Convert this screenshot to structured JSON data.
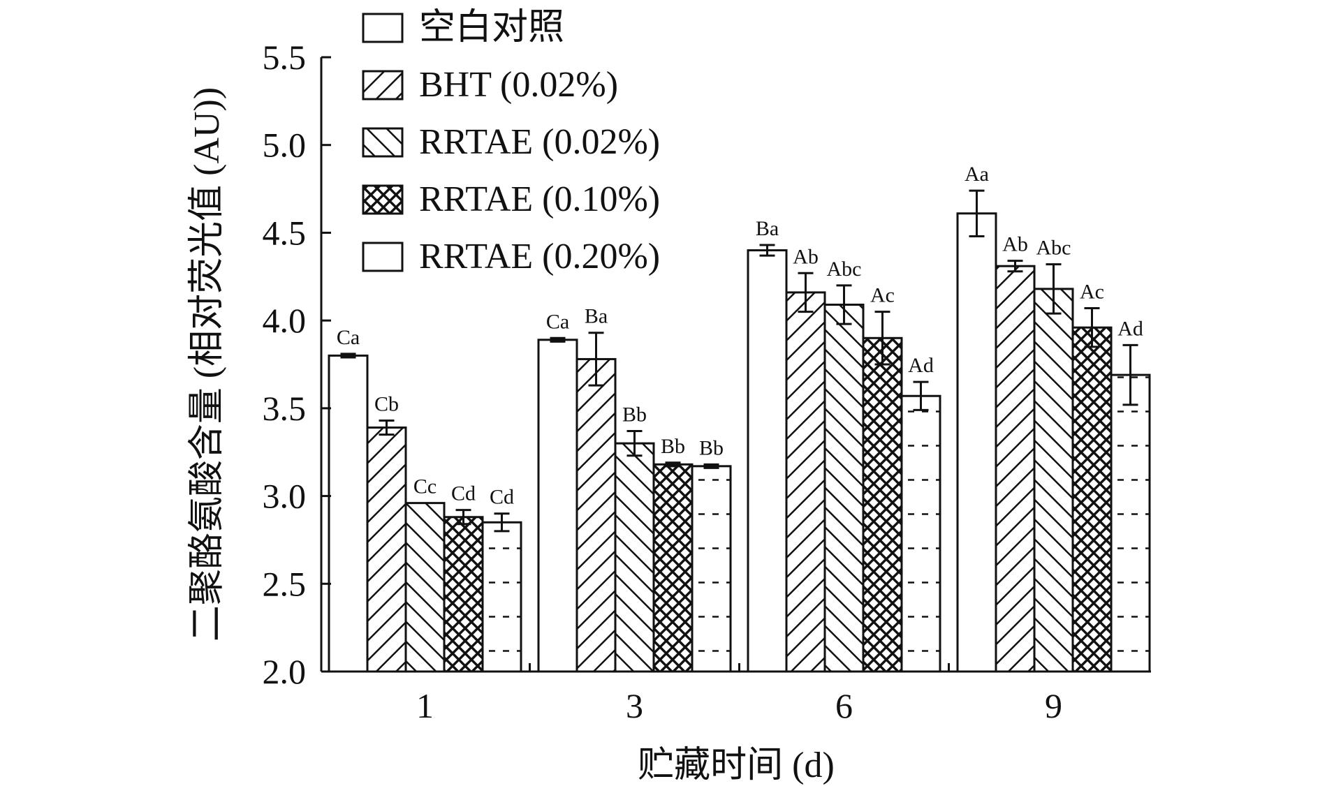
{
  "chart_data": {
    "type": "bar",
    "xlabel": "贮藏时间 (d)",
    "ylabel": "二聚酪氨酸含量 (相对荧光值 (AU))",
    "ylim": [
      2.0,
      5.5
    ],
    "yticks": [
      "2.0",
      "2.5",
      "3.0",
      "3.5",
      "4.0",
      "4.5",
      "5.0",
      "5.5"
    ],
    "categories": [
      "1",
      "3",
      "6",
      "9"
    ],
    "legend_position": "top-left",
    "series": [
      {
        "name": "空白对照",
        "pattern": "open",
        "values": [
          3.8,
          3.89,
          4.4,
          4.61
        ],
        "errors": [
          0.01,
          0.01,
          0.03,
          0.13
        ],
        "labels": [
          "Ca",
          "Ca",
          "Ba",
          "Aa"
        ]
      },
      {
        "name": "BHT (0.02%)",
        "pattern": "diag-forward",
        "values": [
          3.39,
          3.78,
          4.16,
          4.31
        ],
        "errors": [
          0.04,
          0.15,
          0.11,
          0.03
        ],
        "labels": [
          "Cb",
          "Ba",
          "Ab",
          "Ab"
        ]
      },
      {
        "name": "RRTAE (0.02%)",
        "pattern": "diag-back",
        "values": [
          2.96,
          3.3,
          4.09,
          4.18
        ],
        "errors": [
          0.0,
          0.07,
          0.11,
          0.14
        ],
        "labels": [
          "Cc",
          "Bb",
          "Abc",
          "Abc"
        ]
      },
      {
        "name": "RRTAE (0.10%)",
        "pattern": "crosshatch",
        "values": [
          2.88,
          3.18,
          3.9,
          3.96
        ],
        "errors": [
          0.04,
          0.01,
          0.15,
          0.11
        ],
        "labels": [
          "Cd",
          "Bb",
          "Ac",
          "Ac"
        ]
      },
      {
        "name": "RRTAE (0.20%)",
        "pattern": "dashed",
        "values": [
          2.85,
          3.17,
          3.57,
          3.69
        ],
        "errors": [
          0.05,
          0.01,
          0.08,
          0.17
        ],
        "labels": [
          "Cd",
          "Bb",
          "Ad",
          "Ad"
        ]
      }
    ]
  }
}
